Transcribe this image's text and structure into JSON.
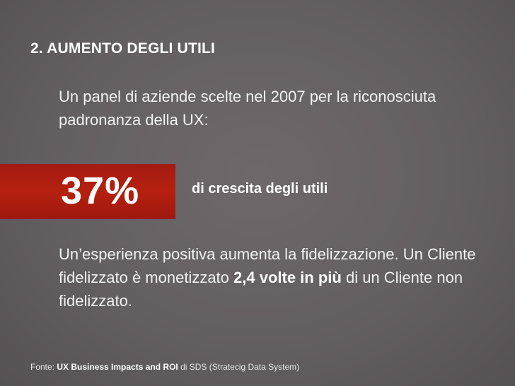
{
  "slide": {
    "title": "2. AUMENTO DEGLI UTILI",
    "intro": "Un panel di aziende scelte nel 2007 per la riconosciuta padronanza della UX:",
    "stat": {
      "value": "37%",
      "label": "di crescita degli utili",
      "band_color": "#ad1d0f"
    },
    "body": {
      "sentence_1": "Un’esperienza positiva aumenta la fidelizzazione.",
      "sentence_2_start": "Un Cliente fidelizzato è monetizzato ",
      "sentence_2_emphasis": "2,4 volte in più",
      "sentence_2_end": " di un Cliente non fidelizzato."
    },
    "source": {
      "prefix": "Fonte: ",
      "work": "UX Business Impacts and ROI",
      "suffix": " di SDS (Stratecig Data System)"
    }
  }
}
